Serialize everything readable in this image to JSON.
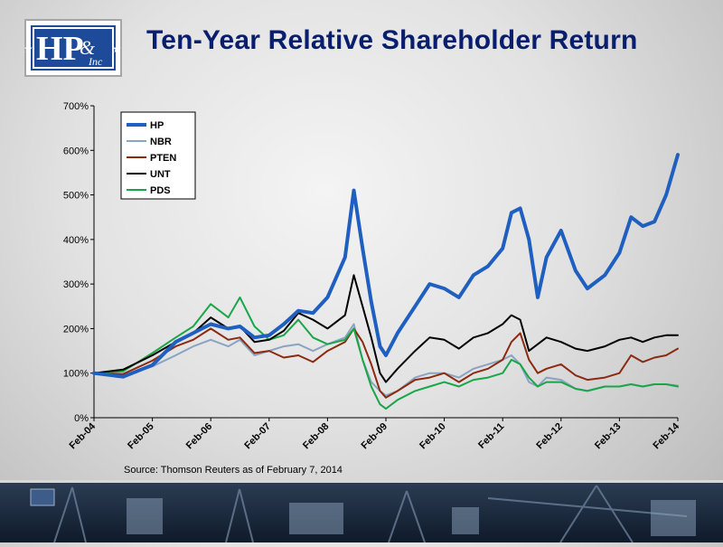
{
  "header": {
    "logo_text": "H&P Inc",
    "title": "Ten-Year Relative Shareholder Return"
  },
  "source_note": "Source: Thomson Reuters as of February 7, 2014",
  "colors": {
    "HP": "#1f5fc0",
    "NBR": "#8aa3c0",
    "PTEN": "#8b2a10",
    "UNT": "#000000",
    "PDS": "#1aa648"
  },
  "chart_data": {
    "type": "line",
    "title": "",
    "xlabel": "",
    "ylabel": "",
    "ylim": [
      0,
      700
    ],
    "yticks": [
      0,
      100,
      200,
      300,
      400,
      500,
      600,
      700
    ],
    "ytick_labels": [
      "0%",
      "100%",
      "200%",
      "300%",
      "400%",
      "500%",
      "600%",
      "700%"
    ],
    "x_tick_labels": [
      "Feb-04",
      "Feb-05",
      "Feb-06",
      "Feb-07",
      "Feb-08",
      "Feb-09",
      "Feb-10",
      "Feb-11",
      "Feb-12",
      "Feb-13",
      "Feb-14"
    ],
    "grid": false,
    "legend_position": "top-left",
    "x": [
      2004.0,
      2004.5,
      2005.0,
      2005.4,
      2005.7,
      2006.0,
      2006.3,
      2006.5,
      2006.75,
      2007.0,
      2007.25,
      2007.5,
      2007.75,
      2008.0,
      2008.3,
      2008.45,
      2008.6,
      2008.75,
      2008.9,
      2009.0,
      2009.2,
      2009.5,
      2009.75,
      2010.0,
      2010.25,
      2010.5,
      2010.75,
      2011.0,
      2011.15,
      2011.3,
      2011.45,
      2011.6,
      2011.75,
      2012.0,
      2012.25,
      2012.45,
      2012.75,
      2013.0,
      2013.2,
      2013.4,
      2013.6,
      2013.8,
      2014.0
    ],
    "series": [
      {
        "name": "HP",
        "values": [
          100,
          92,
          118,
          170,
          190,
          210,
          200,
          205,
          180,
          185,
          210,
          240,
          235,
          270,
          360,
          510,
          380,
          260,
          160,
          140,
          190,
          250,
          300,
          290,
          270,
          320,
          340,
          380,
          460,
          470,
          400,
          270,
          360,
          420,
          330,
          290,
          320,
          370,
          450,
          430,
          440,
          500,
          590
        ]
      },
      {
        "name": "NBR",
        "values": [
          100,
          95,
          115,
          140,
          160,
          175,
          160,
          175,
          140,
          150,
          160,
          165,
          150,
          165,
          180,
          210,
          130,
          80,
          60,
          50,
          60,
          90,
          100,
          100,
          90,
          110,
          120,
          130,
          140,
          120,
          80,
          70,
          90,
          85,
          65,
          60,
          70,
          70,
          75,
          70,
          75,
          75,
          72
        ]
      },
      {
        "name": "PTEN",
        "values": [
          100,
          98,
          128,
          160,
          175,
          200,
          175,
          180,
          145,
          150,
          135,
          140,
          125,
          150,
          170,
          200,
          170,
          120,
          60,
          45,
          60,
          85,
          90,
          100,
          80,
          100,
          110,
          130,
          170,
          190,
          130,
          100,
          110,
          120,
          95,
          85,
          90,
          100,
          140,
          125,
          135,
          140,
          155
        ]
      },
      {
        "name": "UNT",
        "values": [
          100,
          108,
          140,
          170,
          190,
          225,
          200,
          205,
          170,
          175,
          195,
          235,
          220,
          200,
          230,
          320,
          250,
          180,
          100,
          80,
          110,
          150,
          180,
          175,
          155,
          180,
          190,
          210,
          230,
          220,
          150,
          165,
          180,
          170,
          155,
          150,
          160,
          175,
          180,
          170,
          180,
          185,
          185
        ]
      },
      {
        "name": "PDS",
        "values": [
          100,
          104,
          145,
          180,
          205,
          255,
          225,
          270,
          205,
          175,
          185,
          220,
          180,
          165,
          175,
          200,
          130,
          70,
          30,
          20,
          40,
          60,
          70,
          80,
          70,
          85,
          90,
          100,
          130,
          120,
          90,
          70,
          80,
          80,
          65,
          60,
          70,
          70,
          75,
          70,
          75,
          75,
          70
        ]
      }
    ]
  }
}
